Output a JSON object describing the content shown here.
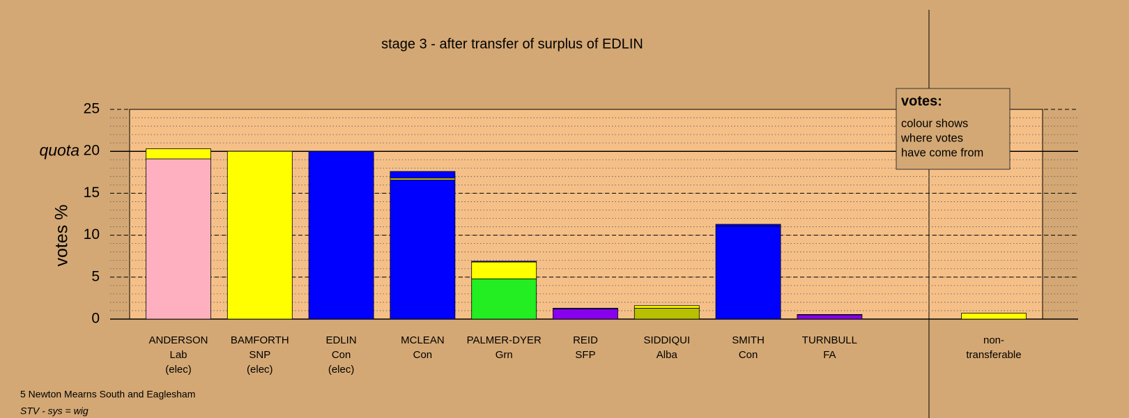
{
  "chart_data": {
    "type": "stacked_bar",
    "title": "stage 3 - after transfer of surplus of EDLIN",
    "y_label": "votes %",
    "categories": [
      [
        "ANDERSON",
        "Lab",
        "(elec)"
      ],
      [
        "BAMFORTH",
        "SNP",
        "(elec)"
      ],
      [
        "EDLIN",
        "Con",
        "(elec)"
      ],
      [
        "MCLEAN",
        "Con"
      ],
      [
        "PALMER-DYER",
        "Grn"
      ],
      [
        "REID",
        "SFP"
      ],
      [
        "SIDDIQUI",
        "Alba"
      ],
      [
        "SMITH",
        "Con"
      ],
      [
        "TURNBULL",
        "FA"
      ],
      [
        "non-",
        "transferable"
      ]
    ],
    "series": [
      {
        "colors": [
          "#ffb0c0",
          "#ffff00",
          "#0000ff",
          "#0000ff",
          "#22ee22",
          "#8800ee",
          "#b8c000",
          "#0000ff",
          "#8800ee",
          "#ffff00"
        ],
        "values": [
          19.1,
          20.0,
          20.0,
          16.6,
          4.8,
          1.2,
          1.3,
          11.1,
          0.5,
          0.7
        ]
      },
      {
        "color": "#ffff00",
        "values": [
          1.2,
          0,
          0,
          0.2,
          2.0,
          0,
          0.3,
          0,
          0,
          0
        ]
      },
      {
        "color": "#0000ff",
        "values": [
          0,
          0,
          0,
          0.8,
          0.1,
          0.1,
          0,
          0.2,
          0.05,
          0
        ]
      }
    ],
    "ylim": [
      0,
      25
    ],
    "yticks": [
      0,
      5,
      10,
      15,
      20,
      25
    ],
    "minor_grid_step": 1,
    "quota": 20,
    "quota_label": "quota",
    "legend": {
      "title": "votes:",
      "lines": [
        "colour shows",
        "where votes",
        "have come from"
      ]
    },
    "footer": [
      "5 Newton Mearns South and Eaglesham",
      "STV - sys = wig"
    ]
  }
}
